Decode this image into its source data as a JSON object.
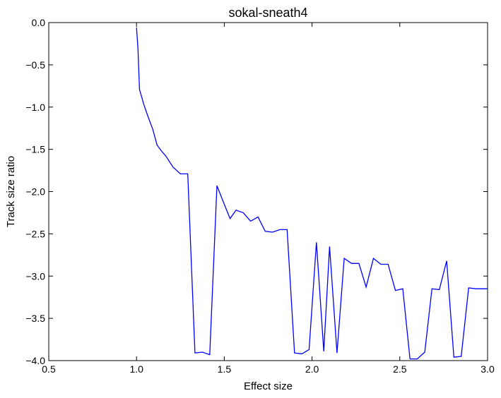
{
  "chart_data": {
    "type": "line",
    "title": "sokal-sneath4",
    "xlabel": "Effect size",
    "ylabel": "Track size ratio",
    "xlim": [
      0.5,
      3.0
    ],
    "ylim": [
      -4.0,
      0.0
    ],
    "grid": false,
    "legend": "none",
    "x_ticks": [
      0.5,
      1.0,
      1.5,
      2.0,
      2.5,
      3.0
    ],
    "x_tick_labels": [
      "0.5",
      "1.0",
      "1.5",
      "2.0",
      "2.5",
      "3.0"
    ],
    "y_ticks": [
      0.0,
      -0.5,
      -1.0,
      -1.5,
      -2.0,
      -2.5,
      -3.0,
      -3.5,
      -4.0
    ],
    "y_tick_labels": [
      "0.0",
      "−0.5",
      "−1.0",
      "−1.5",
      "−2.0",
      "−2.5",
      "−3.0",
      "−3.5",
      "−4.0"
    ],
    "series": [
      {
        "color": "#0000ff",
        "x": [
          1.0,
          1.008,
          1.017,
          1.042,
          1.067,
          1.092,
          1.117,
          1.142,
          1.167,
          1.208,
          1.25,
          1.292,
          1.333,
          1.375,
          1.417,
          1.458,
          1.5,
          1.533,
          1.567,
          1.608,
          1.65,
          1.692,
          1.733,
          1.775,
          1.817,
          1.858,
          1.9,
          1.942,
          1.983,
          2.025,
          2.067,
          2.1,
          2.142,
          2.183,
          2.225,
          2.267,
          2.308,
          2.35,
          2.392,
          2.433,
          2.475,
          2.517,
          2.558,
          2.6,
          2.642,
          2.683,
          2.725,
          2.767,
          2.808,
          2.85,
          2.892,
          2.933,
          2.975,
          3.0
        ],
        "y": [
          -0.06,
          -0.3,
          -0.79,
          -0.97,
          -1.12,
          -1.26,
          -1.45,
          -1.52,
          -1.58,
          -1.71,
          -1.79,
          -1.79,
          -3.91,
          -3.9,
          -3.93,
          -1.93,
          -2.15,
          -2.32,
          -2.22,
          -2.25,
          -2.35,
          -2.3,
          -2.47,
          -2.48,
          -2.45,
          -2.45,
          -3.91,
          -3.92,
          -3.87,
          -2.6,
          -3.89,
          -2.65,
          -3.91,
          -2.79,
          -2.85,
          -2.85,
          -3.13,
          -2.79,
          -2.86,
          -2.86,
          -3.17,
          -3.15,
          -3.98,
          -3.98,
          -3.9,
          -3.15,
          -3.16,
          -2.82,
          -3.96,
          -3.95,
          -3.14,
          -3.15,
          -3.15,
          -3.15
        ]
      }
    ]
  }
}
